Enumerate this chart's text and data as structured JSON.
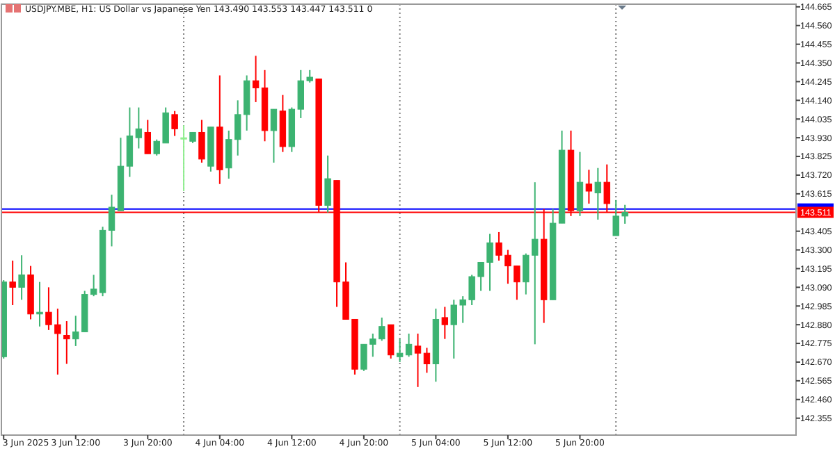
{
  "chart_data": {
    "type": "candlestick",
    "title": "USDJPY.MBE, H1:  US Dollar vs Japanese Yen  143.490 143.553 143.447 143.511  0",
    "x": [
      "2025-06-03T04:00",
      "2025-06-03T05:00",
      "2025-06-03T06:00",
      "2025-06-03T07:00",
      "2025-06-03T08:00",
      "2025-06-03T09:00",
      "2025-06-03T10:00",
      "2025-06-03T11:00",
      "2025-06-03T12:00",
      "2025-06-03T13:00",
      "2025-06-03T14:00",
      "2025-06-03T15:00",
      "2025-06-03T16:00",
      "2025-06-03T17:00",
      "2025-06-03T18:00",
      "2025-06-03T19:00",
      "2025-06-03T20:00",
      "2025-06-03T21:00",
      "2025-06-03T22:00",
      "2025-06-03T23:00",
      "2025-06-04T00:00",
      "2025-06-04T01:00",
      "2025-06-04T02:00",
      "2025-06-04T03:00",
      "2025-06-04T04:00",
      "2025-06-04T05:00",
      "2025-06-04T06:00",
      "2025-06-04T07:00",
      "2025-06-04T08:00",
      "2025-06-04T09:00",
      "2025-06-04T10:00",
      "2025-06-04T11:00",
      "2025-06-04T12:00",
      "2025-06-04T13:00",
      "2025-06-04T14:00",
      "2025-06-04T15:00",
      "2025-06-04T16:00",
      "2025-06-04T17:00",
      "2025-06-04T18:00",
      "2025-06-04T19:00",
      "2025-06-04T20:00",
      "2025-06-04T21:00",
      "2025-06-04T22:00",
      "2025-06-04T23:00",
      "2025-06-05T00:00",
      "2025-06-05T01:00",
      "2025-06-05T02:00",
      "2025-06-05T03:00",
      "2025-06-05T04:00",
      "2025-06-05T05:00",
      "2025-06-05T06:00",
      "2025-06-05T07:00",
      "2025-06-05T08:00",
      "2025-06-05T09:00",
      "2025-06-05T10:00",
      "2025-06-05T11:00",
      "2025-06-05T12:00",
      "2025-06-05T13:00",
      "2025-06-05T14:00",
      "2025-06-05T15:00",
      "2025-06-05T16:00",
      "2025-06-05T17:00",
      "2025-06-05T18:00",
      "2025-06-05T19:00",
      "2025-06-05T20:00",
      "2025-06-05T21:00",
      "2025-06-05T22:00",
      "2025-06-05T23:00",
      "2025-06-06T00:00",
      "2025-06-06T01:00"
    ],
    "ohlc": [
      [
        142.7,
        143.13,
        142.69,
        143.12
      ],
      [
        143.12,
        143.24,
        142.99,
        143.09
      ],
      [
        143.09,
        143.27,
        143.02,
        143.16
      ],
      [
        143.16,
        143.21,
        142.91,
        142.94
      ],
      [
        142.94,
        143.12,
        142.87,
        142.95
      ],
      [
        142.95,
        143.09,
        142.85,
        142.88
      ],
      [
        142.88,
        142.97,
        142.6,
        142.83
      ],
      [
        142.82,
        142.9,
        142.66,
        142.8
      ],
      [
        142.8,
        142.93,
        142.76,
        142.84
      ],
      [
        142.84,
        143.07,
        142.84,
        143.05
      ],
      [
        143.05,
        143.16,
        143.04,
        143.08
      ],
      [
        143.06,
        143.43,
        143.04,
        143.41
      ],
      [
        143.41,
        143.61,
        143.32,
        143.54
      ],
      [
        143.52,
        143.93,
        143.52,
        143.77
      ],
      [
        143.77,
        144.1,
        143.71,
        143.94
      ],
      [
        143.93,
        144.1,
        143.87,
        143.98
      ],
      [
        143.96,
        144.03,
        143.84,
        143.84
      ],
      [
        143.84,
        143.92,
        143.83,
        143.91
      ],
      [
        143.9,
        144.1,
        143.9,
        144.07
      ],
      [
        144.06,
        144.08,
        143.94,
        143.98
      ],
      [
        143.93,
        144.0,
        143.63,
        143.93
      ],
      [
        143.91,
        143.96,
        143.9,
        143.96
      ],
      [
        143.96,
        144.03,
        143.79,
        143.81
      ],
      [
        143.77,
        143.99,
        143.74,
        143.99
      ],
      [
        143.99,
        144.28,
        143.67,
        143.75
      ],
      [
        143.76,
        143.97,
        143.7,
        143.92
      ],
      [
        143.92,
        144.14,
        143.83,
        144.06
      ],
      [
        144.06,
        144.28,
        143.97,
        144.25
      ],
      [
        144.25,
        144.39,
        144.13,
        144.21
      ],
      [
        144.21,
        144.31,
        143.91,
        143.97
      ],
      [
        143.97,
        144.09,
        143.79,
        144.09
      ],
      [
        144.08,
        144.17,
        143.85,
        143.88
      ],
      [
        143.88,
        144.1,
        143.85,
        144.09
      ],
      [
        144.09,
        144.31,
        144.04,
        144.25
      ],
      [
        144.25,
        144.31,
        144.24,
        144.27
      ],
      [
        144.26,
        144.26,
        143.51,
        143.55
      ],
      [
        143.55,
        143.83,
        143.51,
        143.7
      ],
      [
        143.69,
        143.69,
        142.98,
        143.12
      ],
      [
        143.12,
        143.23,
        142.91,
        142.91
      ],
      [
        142.91,
        142.91,
        142.6,
        142.63
      ],
      [
        142.63,
        142.77,
        142.62,
        142.77
      ],
      [
        142.77,
        142.83,
        142.7,
        142.8
      ],
      [
        142.8,
        142.92,
        142.79,
        142.87
      ],
      [
        142.88,
        142.88,
        142.69,
        142.71
      ],
      [
        142.7,
        142.8,
        142.67,
        142.72
      ],
      [
        142.71,
        142.83,
        142.7,
        142.77
      ],
      [
        142.76,
        142.83,
        142.53,
        142.72
      ],
      [
        142.72,
        142.75,
        142.61,
        142.66
      ],
      [
        142.66,
        142.97,
        142.56,
        142.91
      ],
      [
        142.92,
        142.98,
        142.8,
        142.88
      ],
      [
        142.88,
        143.02,
        142.69,
        142.99
      ],
      [
        142.99,
        143.04,
        142.89,
        143.02
      ],
      [
        143.02,
        143.16,
        142.99,
        143.15
      ],
      [
        143.15,
        143.23,
        143.07,
        143.23
      ],
      [
        143.23,
        143.39,
        143.07,
        143.34
      ],
      [
        143.34,
        143.4,
        143.24,
        143.27
      ],
      [
        143.27,
        143.3,
        143.11,
        143.21
      ],
      [
        143.21,
        143.21,
        143.02,
        143.12
      ],
      [
        143.12,
        143.28,
        143.05,
        143.27
      ],
      [
        143.27,
        143.68,
        142.77,
        143.36
      ],
      [
        143.36,
        143.53,
        142.89,
        143.02
      ],
      [
        143.02,
        143.53,
        143.02,
        143.45
      ],
      [
        143.45,
        143.97,
        143.45,
        143.86
      ],
      [
        143.86,
        143.97,
        143.49,
        143.52
      ],
      [
        143.52,
        143.85,
        143.49,
        143.68
      ],
      [
        143.67,
        143.75,
        143.56,
        143.63
      ],
      [
        143.62,
        143.76,
        143.47,
        143.68
      ],
      [
        143.68,
        143.78,
        143.51,
        143.56
      ],
      [
        143.38,
        143.58,
        143.38,
        143.49
      ],
      [
        143.49,
        143.553,
        143.447,
        143.511
      ]
    ],
    "colors": [
      "#3cb371",
      "#ff0000",
      "#3cb371",
      "#ff0000",
      "#3cb371",
      "#ff0000",
      "#ff0000",
      "#ff0000",
      "#3cb371",
      "#3cb371",
      "#3cb371",
      "#3cb371",
      "#3cb371",
      "#3cb371",
      "#3cb371",
      "#3cb371",
      "#ff0000",
      "#3cb371",
      "#3cb371",
      "#ff0000",
      "#90ee90",
      "#3cb371",
      "#ff0000",
      "#3cb371",
      "#ff0000",
      "#3cb371",
      "#3cb371",
      "#3cb371",
      "#ff0000",
      "#ff0000",
      "#3cb371",
      "#ff0000",
      "#3cb371",
      "#3cb371",
      "#3cb371",
      "#ff0000",
      "#3cb371",
      "#ff0000",
      "#ff0000",
      "#ff0000",
      "#3cb371",
      "#3cb371",
      "#3cb371",
      "#ff0000",
      "#3cb371",
      "#3cb371",
      "#ff0000",
      "#ff0000",
      "#3cb371",
      "#ff0000",
      "#3cb371",
      "#3cb371",
      "#3cb371",
      "#3cb371",
      "#3cb371",
      "#ff0000",
      "#ff0000",
      "#ff0000",
      "#3cb371",
      "#3cb371",
      "#ff0000",
      "#3cb371",
      "#3cb371",
      "#ff0000",
      "#3cb371",
      "#ff0000",
      "#3cb371",
      "#ff0000",
      "#3cb371",
      "#3cb371"
    ],
    "xlim": [
      "2025-06-03T03:45",
      "2025-06-06T20:00"
    ],
    "xticks": [
      {
        "value": "2025-06-03T04:00",
        "label": "3 Jun 2025"
      },
      {
        "value": "2025-06-03T12:00",
        "label": "3 Jun 12:00"
      },
      {
        "value": "2025-06-03T20:00",
        "label": "3 Jun 20:00"
      },
      {
        "value": "2025-06-04T04:00",
        "label": "4 Jun 04:00"
      },
      {
        "value": "2025-06-04T12:00",
        "label": "4 Jun 12:00"
      },
      {
        "value": "2025-06-04T20:00",
        "label": "4 Jun 20:00"
      },
      {
        "value": "2025-06-05T04:00",
        "label": "5 Jun 04:00"
      },
      {
        "value": "2025-06-05T12:00",
        "label": "5 Jun 12:00"
      },
      {
        "value": "2025-06-05T20:00",
        "label": "5 Jun 20:00"
      }
    ],
    "ylim": [
      142.26,
      144.68
    ],
    "yticks": [
      {
        "value": 144.665,
        "label": "144.665"
      },
      {
        "value": 144.56,
        "label": "144.560"
      },
      {
        "value": 144.455,
        "label": "144.455"
      },
      {
        "value": 144.35,
        "label": "144.350"
      },
      {
        "value": 144.245,
        "label": "144.245"
      },
      {
        "value": 144.14,
        "label": "144.140"
      },
      {
        "value": 144.035,
        "label": "144.035"
      },
      {
        "value": 143.93,
        "label": "143.930"
      },
      {
        "value": 143.825,
        "label": "143.825"
      },
      {
        "value": 143.72,
        "label": "143.720"
      },
      {
        "value": 143.615,
        "label": "143.615"
      },
      {
        "value": 143.405,
        "label": "143.405"
      },
      {
        "value": 143.3,
        "label": "143.300"
      },
      {
        "value": 143.195,
        "label": "143.195"
      },
      {
        "value": 143.09,
        "label": "143.090"
      },
      {
        "value": 142.985,
        "label": "142.985"
      },
      {
        "value": 142.88,
        "label": "142.880"
      },
      {
        "value": 142.775,
        "label": "142.775"
      },
      {
        "value": 142.67,
        "label": "142.670"
      },
      {
        "value": 142.565,
        "label": "142.565"
      },
      {
        "value": 142.46,
        "label": "142.460"
      },
      {
        "value": 142.355,
        "label": "142.355"
      }
    ],
    "ref_lines": [
      {
        "axis": "y",
        "value": 143.53,
        "color": "#0000ff"
      },
      {
        "axis": "y",
        "value": 143.511,
        "label": "143.511",
        "color": "#ff0000"
      },
      {
        "axis": "x",
        "value": "2025-06-04T00:00",
        "color": "#808080",
        "line_style": "dotted"
      },
      {
        "axis": "x",
        "value": "2025-06-05T00:00",
        "color": "#808080",
        "line_style": "dotted"
      },
      {
        "axis": "x",
        "value": "2025-06-06T00:00",
        "color": "#808080",
        "line_style": "dotted"
      }
    ],
    "grid": false
  }
}
